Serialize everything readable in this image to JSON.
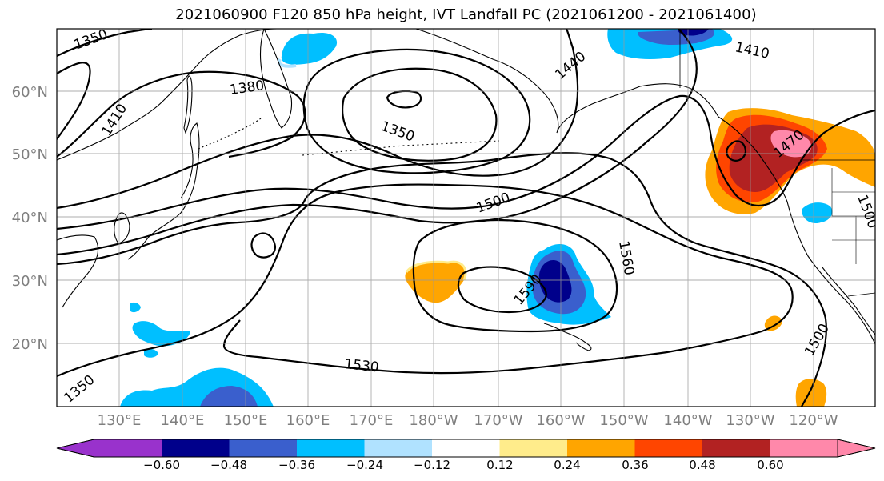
{
  "title": "2021060900 F120 850 hPa height, IVT Landfall PC (2021061200 - 2021061400)",
  "map": {
    "lat_labels": [
      "60°N",
      "50°N",
      "40°N",
      "30°N",
      "20°N"
    ],
    "lon_labels": [
      "130°E",
      "140°E",
      "150°E",
      "160°E",
      "170°E",
      "180°W",
      "170°W",
      "160°W",
      "150°W",
      "140°W",
      "130°W",
      "120°W"
    ],
    "contour_labels": [
      "1350",
      "1380",
      "1410",
      "1350",
      "1440",
      "1410",
      "1470",
      "1500",
      "1560",
      "1590",
      "1530",
      "1500",
      "1350",
      "1500"
    ]
  },
  "colorbar": {
    "ticks": [
      "−0.60",
      "−0.48",
      "−0.36",
      "−0.24",
      "−0.12",
      "0.12",
      "0.24",
      "0.36",
      "0.48",
      "0.60"
    ],
    "colors": [
      "#9932cc",
      "#00008b",
      "#3a5fcd",
      "#00bfff",
      "#b0e2ff",
      "#ffffff",
      "#ffec8b",
      "#ffa500",
      "#ff4500",
      "#b22222",
      "#ff88aa"
    ]
  },
  "colors": {
    "neg_strong": "#00008b",
    "neg_mid": "#3a5fcd",
    "neg_light": "#00bfff",
    "neg_pale": "#b0e2ff",
    "pos_pale": "#ffec8b",
    "pos_mid": "#ffa500",
    "pos_strong": "#ff4500",
    "pos_dark": "#b22222",
    "pos_max": "#ff88aa",
    "grid": "#999999"
  }
}
